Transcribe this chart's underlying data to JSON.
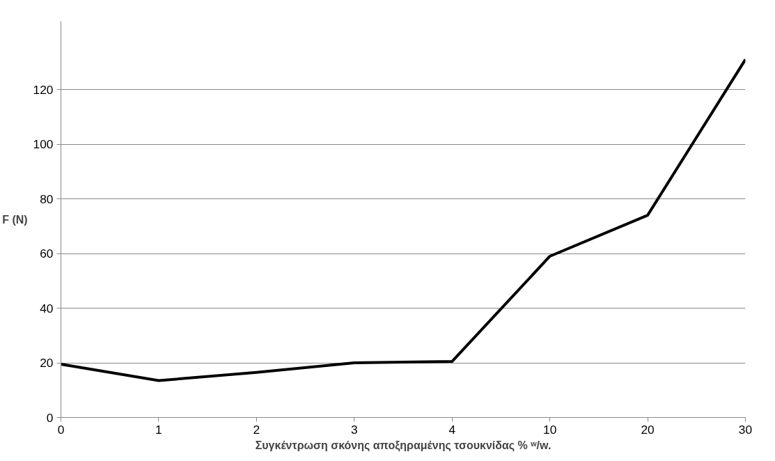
{
  "chart_data": {
    "type": "line",
    "xlabel": "Συγκέντρωση σκόνης αποξηραμένης τσουκνίδας % ʷ/w.",
    "ylabel": "F (N)",
    "categories": [
      "0",
      "1",
      "2",
      "3",
      "4",
      "10",
      "20",
      "30"
    ],
    "series": [
      {
        "color": "#000000",
        "values": [
          19.5,
          13.5,
          16.5,
          20,
          20.5,
          59,
          74,
          131
        ]
      }
    ],
    "ylim": [
      0,
      145
    ],
    "yticks": [
      0,
      20,
      40,
      60,
      80,
      100,
      120
    ],
    "grid": "y",
    "marker": "none",
    "line_style": "solid"
  }
}
